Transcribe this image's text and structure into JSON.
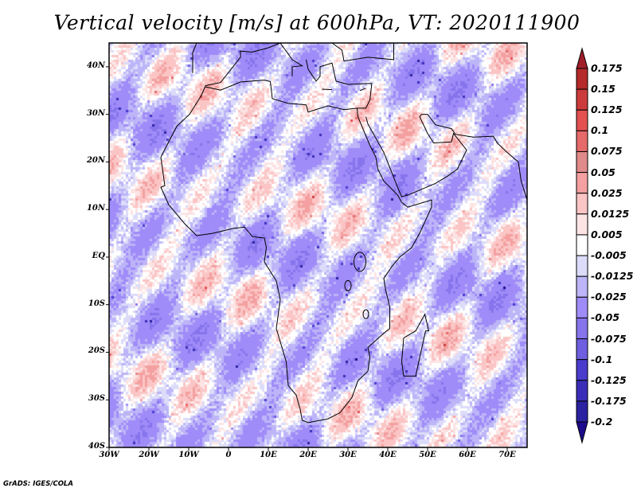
{
  "title": "Vertical velocity [m/s] at 600hPa, VT: 2020111900",
  "credit": "GrADS: IGES/COLA",
  "map": {
    "lon_range": [
      -30,
      75
    ],
    "lat_range": [
      -40,
      45
    ],
    "lat_ticks": [
      {
        "value": 40,
        "label": "40N"
      },
      {
        "value": 30,
        "label": "30N"
      },
      {
        "value": 20,
        "label": "20N"
      },
      {
        "value": 10,
        "label": "10N"
      },
      {
        "value": 0,
        "label": "EQ"
      },
      {
        "value": -10,
        "label": "10S"
      },
      {
        "value": -20,
        "label": "20S"
      },
      {
        "value": -30,
        "label": "30S"
      },
      {
        "value": -40,
        "label": "40S"
      }
    ],
    "lon_ticks": [
      {
        "value": -30,
        "label": "30W"
      },
      {
        "value": -20,
        "label": "20W"
      },
      {
        "value": -10,
        "label": "10W"
      },
      {
        "value": 0,
        "label": "0"
      },
      {
        "value": 10,
        "label": "10E"
      },
      {
        "value": 20,
        "label": "20E"
      },
      {
        "value": 30,
        "label": "30E"
      },
      {
        "value": 40,
        "label": "40E"
      },
      {
        "value": 50,
        "label": "50E"
      },
      {
        "value": 60,
        "label": "60E"
      },
      {
        "value": 70,
        "label": "70E"
      }
    ]
  },
  "colorbar": {
    "labels": [
      "0.175",
      "0.15",
      "0.125",
      "0.1",
      "0.075",
      "0.05",
      "0.025",
      "0.0125",
      "0.005",
      "-0.005",
      "-0.0125",
      "-0.025",
      "-0.05",
      "-0.075",
      "-0.1",
      "-0.125",
      "-0.175",
      "-0.2"
    ],
    "top_color": "#a01e28",
    "bottom_color": "#1c0a8c",
    "colors": [
      "#b52a2a",
      "#cc3b3b",
      "#e45050",
      "#e66a6a",
      "#e08a8a",
      "#f4a0a0",
      "#fbc5c5",
      "#fde4e4",
      "#ffffff",
      "#dcdcfa",
      "#bdb5f8",
      "#a08cf8",
      "#8674ec",
      "#6e5ee0",
      "#4a3ccc",
      "#3a2eb8",
      "#2a22a0"
    ]
  }
}
